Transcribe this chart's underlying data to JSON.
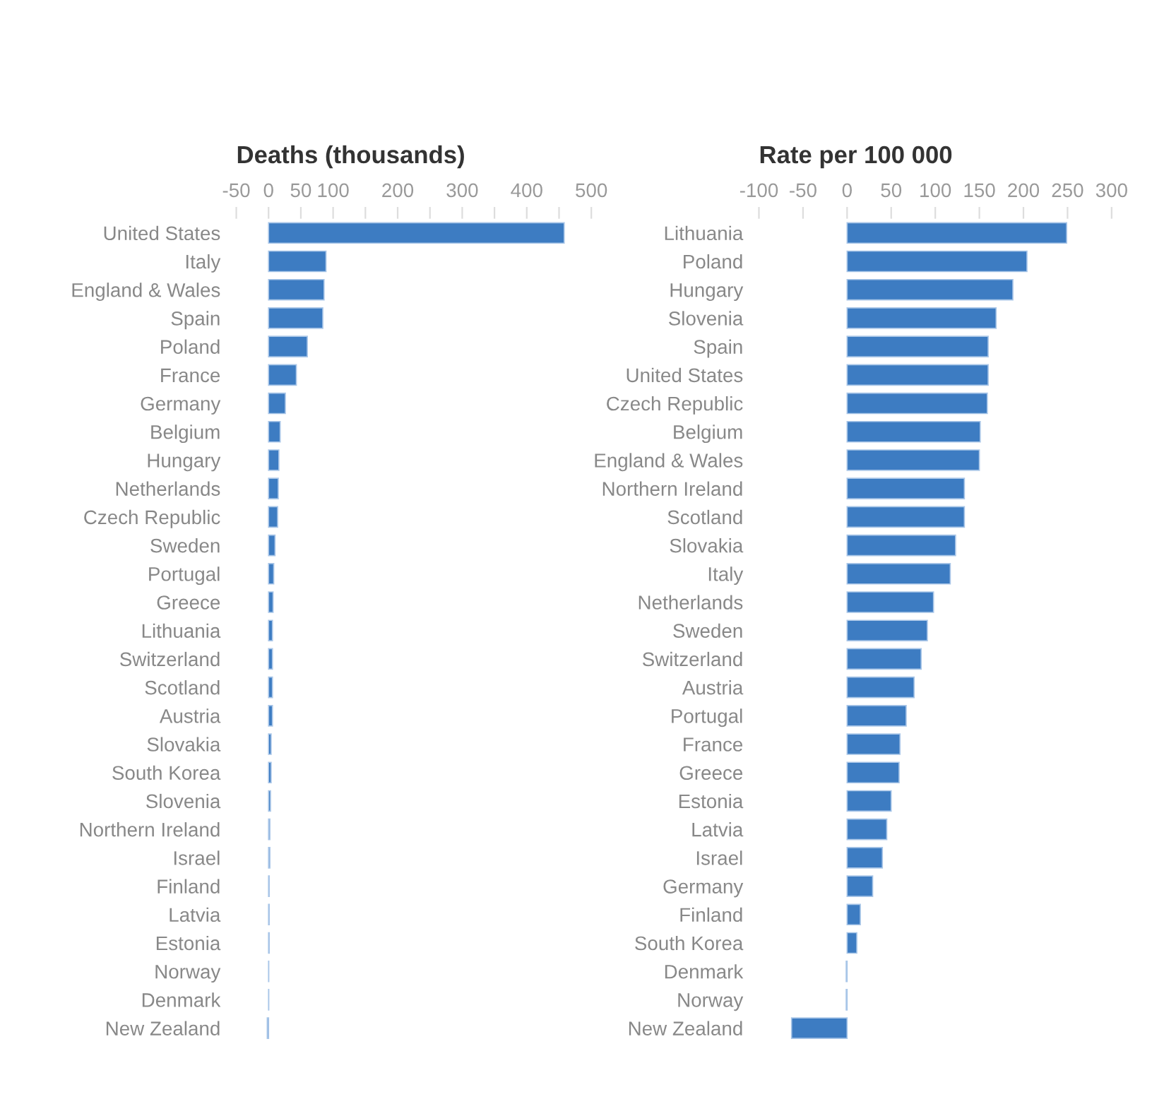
{
  "chart_data": [
    {
      "type": "bar",
      "orientation": "horizontal",
      "title": "Deaths (thousands)",
      "color": "#3d7cc2",
      "categories": [
        "United States",
        "Italy",
        "England & Wales",
        "Spain",
        "Poland",
        "France",
        "Germany",
        "Belgium",
        "Hungary",
        "Netherlands",
        "Czech Republic",
        "Sweden",
        "Portugal",
        "Greece",
        "Lithuania",
        "Switzerland",
        "Scotland",
        "Austria",
        "Slovakia",
        "South Korea",
        "Slovenia",
        "Northern Ireland",
        "Israel",
        "Finland",
        "Latvia",
        "Estonia",
        "Norway",
        "Denmark",
        "New Zealand"
      ],
      "values": [
        458,
        89,
        86,
        84,
        60,
        43,
        26,
        18,
        16,
        15,
        14,
        10,
        8,
        7,
        6,
        6,
        6,
        6,
        4,
        4,
        3,
        2,
        2,
        1,
        1,
        1,
        0.3,
        0.3,
        -2
      ],
      "xlim": [
        -50,
        500
      ],
      "xticks": [
        -50,
        0,
        50,
        100,
        {
          "value": 150,
          "label": null
        },
        200,
        {
          "value": 250,
          "label": null
        },
        300,
        {
          "value": 350,
          "label": null
        },
        400,
        {
          "value": 450,
          "label": null
        },
        500
      ],
      "grid": false
    },
    {
      "type": "bar",
      "orientation": "horizontal",
      "title": "Rate per 100 000",
      "color": "#3d7cc2",
      "categories": [
        "Lithuania",
        "Poland",
        "Hungary",
        "Slovenia",
        "Spain",
        "United States",
        "Czech Republic",
        "Belgium",
        "England & Wales",
        "Northern Ireland",
        "Scotland",
        "Slovakia",
        "Italy",
        "Netherlands",
        "Sweden",
        "Switzerland",
        "Austria",
        "Portugal",
        "France",
        "Greece",
        "Estonia",
        "Latvia",
        "Israel",
        "Germany",
        "Finland",
        "South Korea",
        "Denmark",
        "Norway",
        "New Zealand"
      ],
      "values": [
        249,
        204,
        188,
        169,
        160,
        160,
        159,
        151,
        150,
        133,
        133,
        123,
        117,
        98,
        91,
        84,
        76,
        67,
        60,
        59,
        50,
        45,
        40,
        29,
        15,
        11,
        -1,
        -1,
        -63
      ],
      "xlim": [
        -100,
        300
      ],
      "xticks": [
        -100,
        -50,
        0,
        50,
        100,
        150,
        200,
        250,
        300
      ],
      "grid": false
    }
  ]
}
